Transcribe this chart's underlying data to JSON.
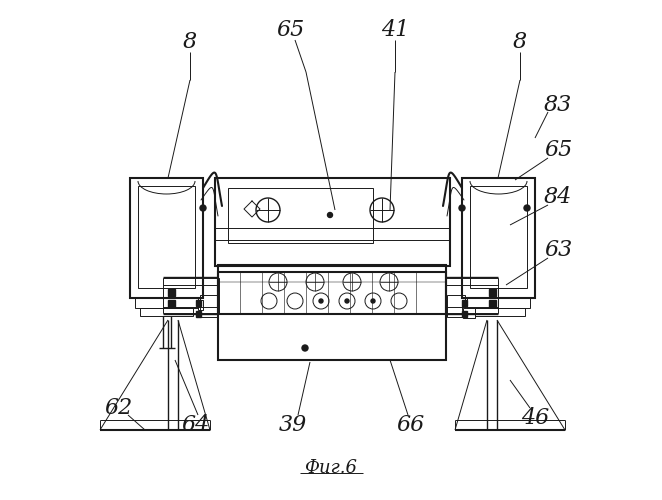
{
  "bg_color": "#ffffff",
  "line_color": "#1a1a1a",
  "fig_label": "Фиг.6",
  "lw_thin": 0.7,
  "lw_med": 1.0,
  "lw_thick": 1.5
}
